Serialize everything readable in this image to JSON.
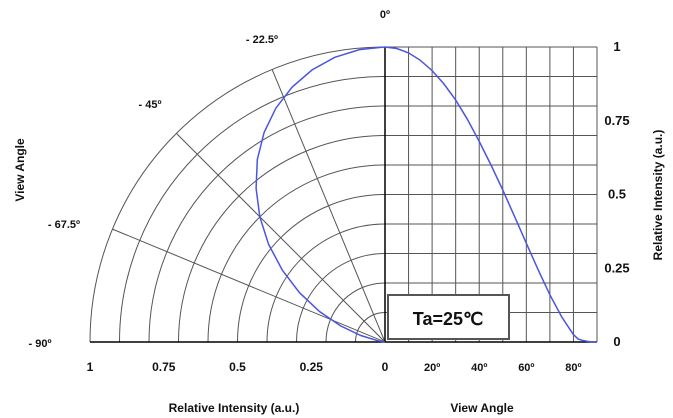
{
  "chart_data": {
    "type": "line",
    "title": "",
    "colors": {
      "curve": "#4a55e0",
      "grid": "#555555",
      "axis": "#000000"
    },
    "polar": {
      "angle_labels": [
        "0º",
        "- 22.5º",
        "- 45º",
        "- 67.5º",
        "- 90º"
      ],
      "angles_deg": [
        0,
        -22.5,
        -45,
        -67.5,
        -90
      ],
      "r_ticks": [
        "1",
        "0.75",
        "0.5",
        "0.25",
        "0"
      ],
      "xlabel": "Relative Intensity (a.u.)",
      "ylabel": "View Angle"
    },
    "cartesian": {
      "x_ticks": [
        "0",
        "20º",
        "40º",
        "60º",
        "80º"
      ],
      "xlim": [
        0,
        90
      ],
      "y_ticks": [
        "1",
        "0.75",
        "0.5",
        "0.25",
        "0"
      ],
      "ylim": [
        0,
        1
      ],
      "xlabel": "View Angle",
      "ylabel": "Relative Intensity (a.u.)"
    },
    "series": [
      {
        "x": [
          0,
          5,
          10,
          15,
          20,
          25,
          30,
          35,
          40,
          45,
          50,
          55,
          60,
          65,
          70,
          75,
          80,
          82,
          84,
          86,
          88,
          90
        ],
        "values": [
          1.0,
          0.995,
          0.98,
          0.955,
          0.92,
          0.875,
          0.82,
          0.755,
          0.68,
          0.6,
          0.515,
          0.425,
          0.335,
          0.245,
          0.16,
          0.085,
          0.025,
          0.01,
          0.005,
          0.002,
          0.0,
          0.0
        ]
      }
    ],
    "annotation": "Ta=25℃"
  }
}
